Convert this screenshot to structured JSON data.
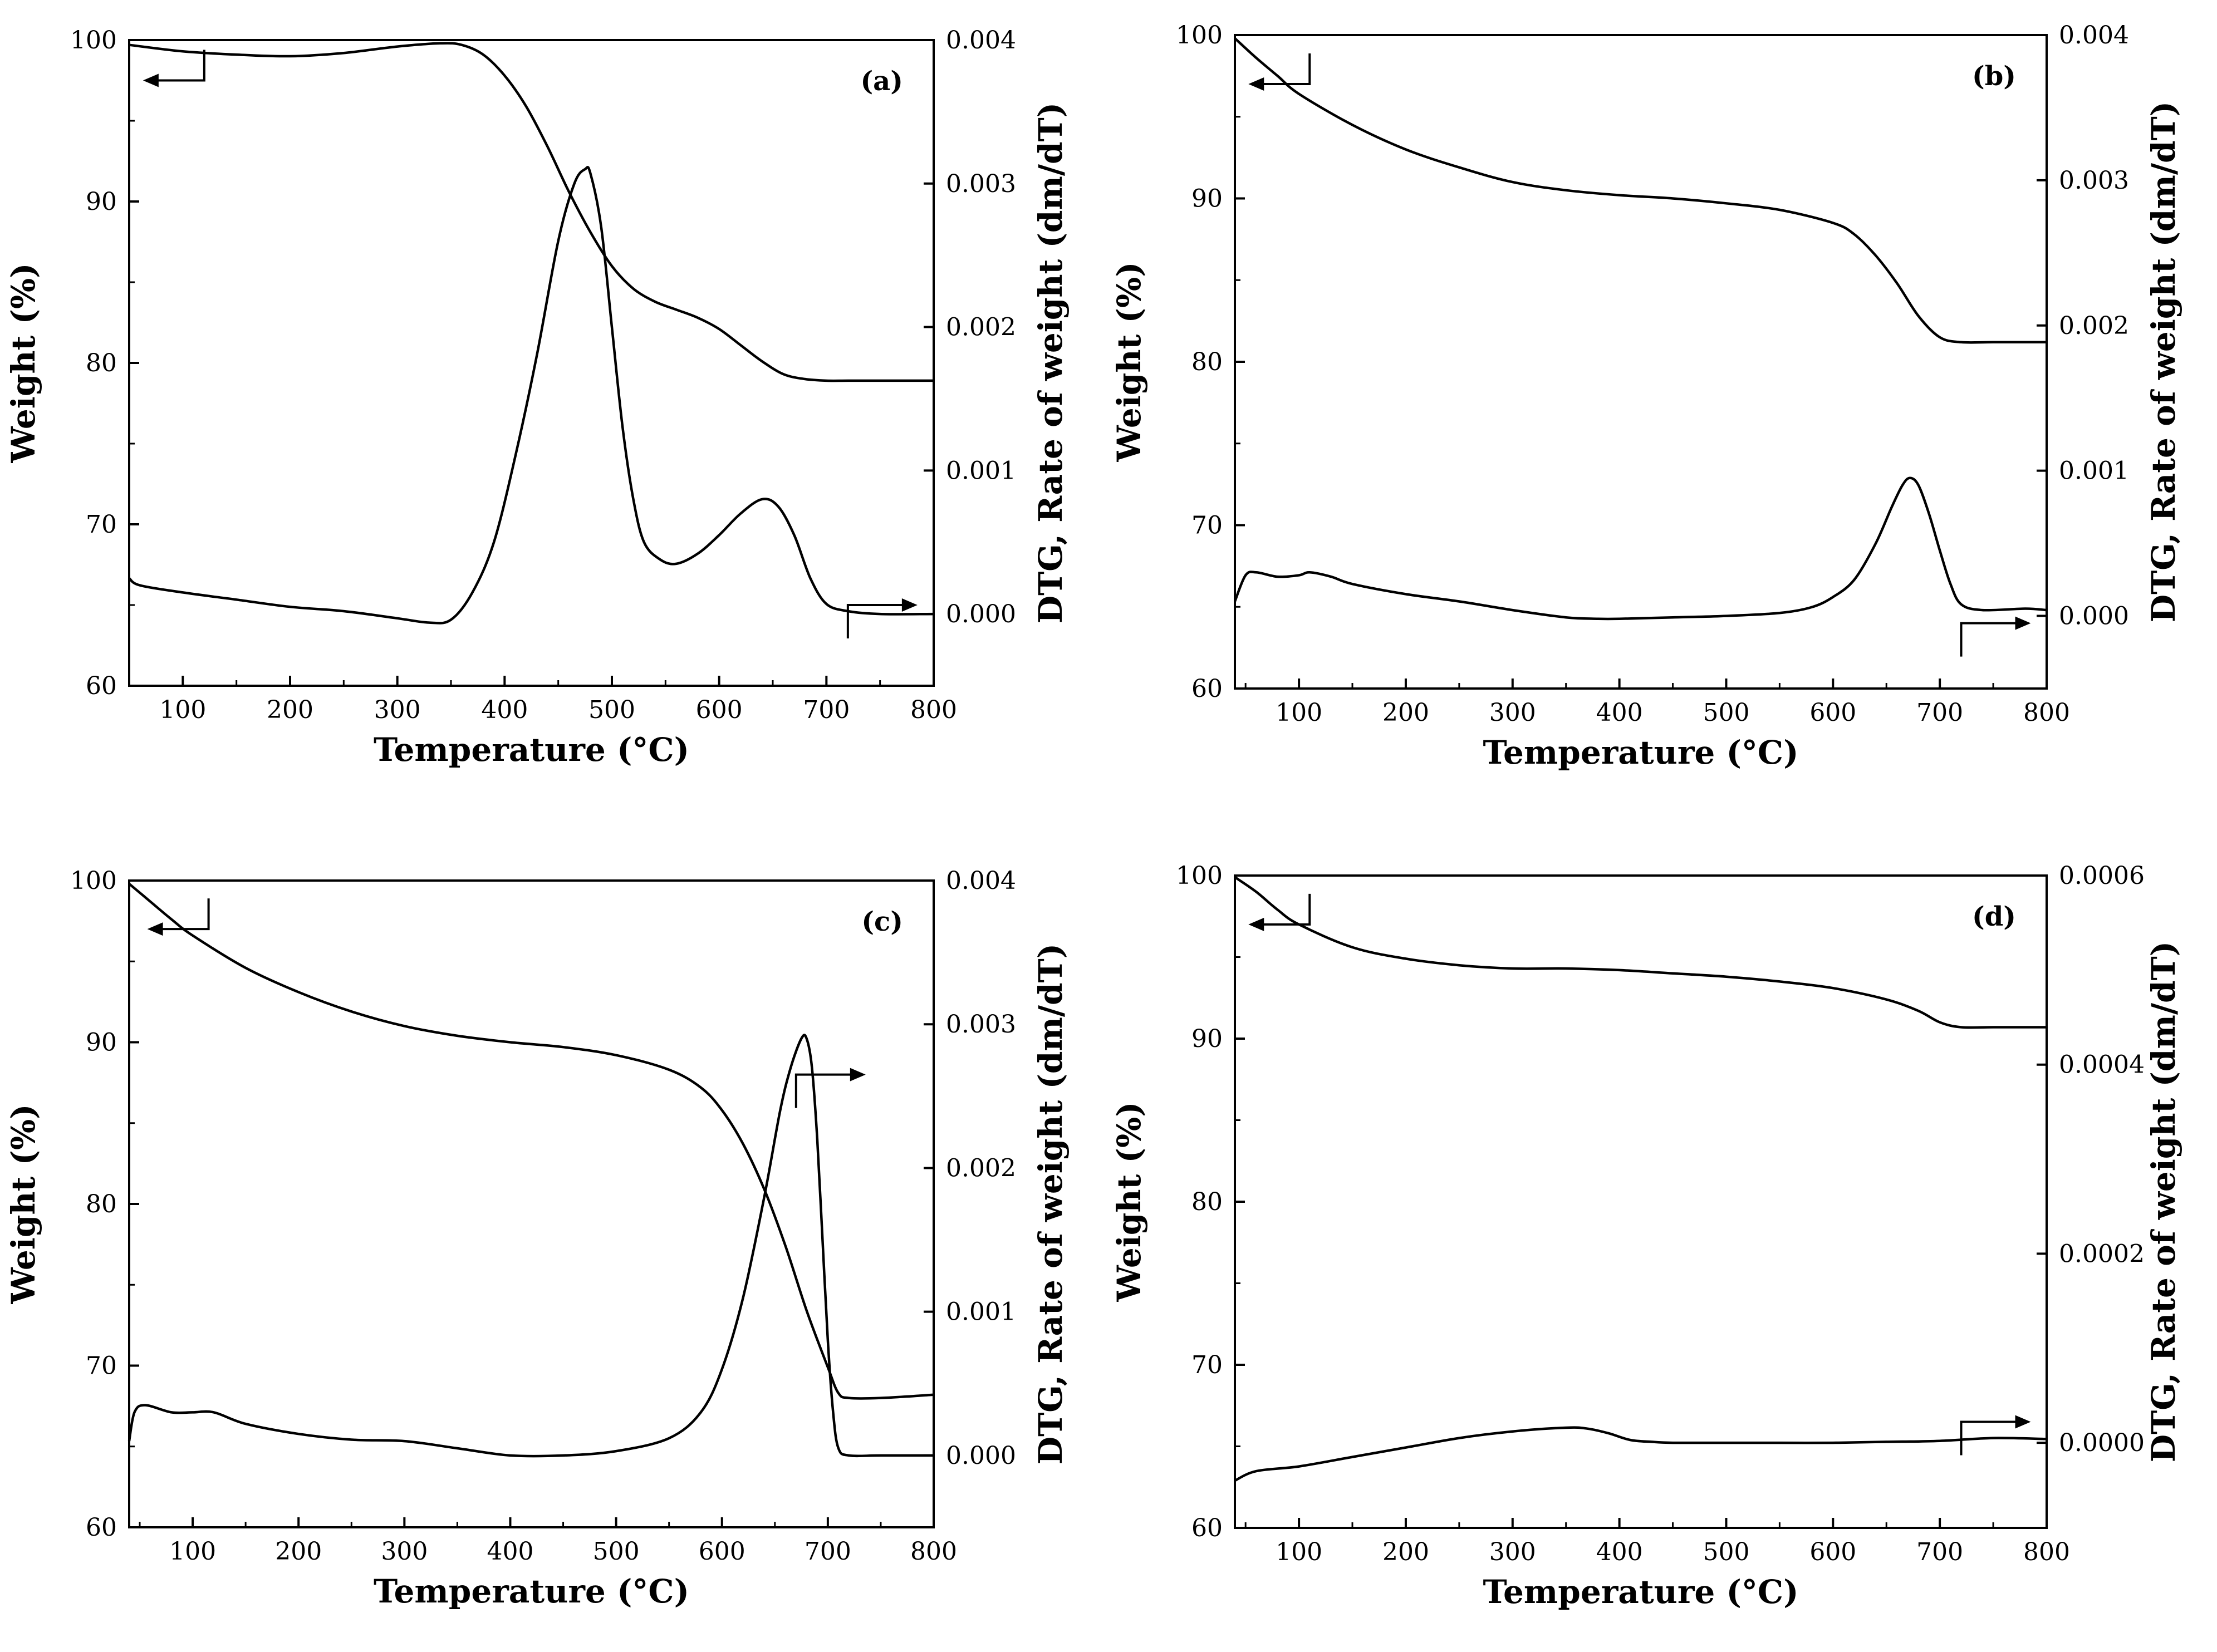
{
  "chart_data": [
    {
      "type": "line",
      "panel_label": "(a)",
      "xlabel": "Temperature (°C)",
      "ylabel": "Weight (%)",
      "ylabel_right": "DTG, Rate of weight (dm/dT)",
      "xlim": [
        50,
        800
      ],
      "ylim": [
        60,
        100
      ],
      "y2lim": [
        -0.0005,
        0.004
      ],
      "xticks": [
        "100",
        "200",
        "300",
        "400",
        "500",
        "600",
        "700",
        "800"
      ],
      "yticks": [
        "60",
        "70",
        "80",
        "90",
        "100"
      ],
      "y2ticks": [
        "0.000",
        "0.001",
        "0.002",
        "0.003",
        "0.004"
      ],
      "weight_series": {
        "name": "Weight",
        "x": [
          50,
          100,
          150,
          200,
          250,
          300,
          340,
          360,
          380,
          400,
          420,
          440,
          460,
          480,
          500,
          520,
          540,
          560,
          580,
          600,
          620,
          640,
          660,
          680,
          700,
          720,
          750,
          800
        ],
        "y": [
          99.7,
          99.3,
          99.1,
          99.0,
          99.2,
          99.6,
          99.8,
          99.7,
          99.1,
          97.8,
          95.9,
          93.4,
          90.6,
          88.1,
          86.0,
          84.6,
          83.8,
          83.3,
          82.8,
          82.1,
          81.1,
          80.1,
          79.3,
          79.0,
          78.9,
          78.9,
          78.9,
          78.9
        ]
      },
      "dtg_series": {
        "name": "DTG",
        "x": [
          50,
          60,
          100,
          150,
          200,
          250,
          300,
          330,
          350,
          370,
          390,
          410,
          430,
          450,
          465,
          475,
          480,
          490,
          500,
          510,
          520,
          530,
          545,
          560,
          580,
          600,
          620,
          640,
          655,
          670,
          685,
          700,
          720,
          750,
          800
        ],
        "y": [
          0.00025,
          0.0002,
          0.00015,
          0.0001,
          5e-05,
          2e-05,
          -3e-05,
          -6e-05,
          -4e-05,
          0.00015,
          0.0005,
          0.0011,
          0.0018,
          0.0026,
          0.003,
          0.0031,
          0.00307,
          0.0027,
          0.002,
          0.0013,
          0.0008,
          0.0005,
          0.00038,
          0.00035,
          0.00042,
          0.00055,
          0.0007,
          0.0008,
          0.00075,
          0.00055,
          0.00025,
          7e-05,
          2e-05,
          0.0,
          0.0
        ]
      },
      "annotations": [
        "arrow pointing left to weight axis",
        "arrow pointing right to DTG axis"
      ]
    },
    {
      "type": "line",
      "panel_label": "(b)",
      "xlabel": "Temperature (°C)",
      "ylabel": "Weight (%)",
      "ylabel_right": "DTG, Rate of weight (dm/dT)",
      "xlim": [
        40,
        800
      ],
      "ylim": [
        60,
        100
      ],
      "y2lim": [
        -0.0005,
        0.004
      ],
      "xticks": [
        "100",
        "200",
        "300",
        "400",
        "500",
        "600",
        "700",
        "800"
      ],
      "yticks": [
        "60",
        "70",
        "80",
        "90",
        "100"
      ],
      "y2ticks": [
        "0.000",
        "0.001",
        "0.002",
        "0.003",
        "0.004"
      ],
      "weight_series": {
        "name": "Weight",
        "x": [
          40,
          60,
          80,
          100,
          150,
          200,
          250,
          300,
          350,
          400,
          450,
          500,
          550,
          600,
          620,
          640,
          660,
          680,
          700,
          720,
          750,
          800
        ],
        "y": [
          99.8,
          98.6,
          97.5,
          96.4,
          94.5,
          93.0,
          91.9,
          91.0,
          90.5,
          90.2,
          90.0,
          89.7,
          89.3,
          88.5,
          87.8,
          86.5,
          84.8,
          82.8,
          81.5,
          81.2,
          81.2,
          81.2
        ]
      },
      "dtg_series": {
        "name": "DTG",
        "x": [
          40,
          50,
          60,
          80,
          100,
          110,
          130,
          150,
          200,
          250,
          300,
          350,
          380,
          400,
          450,
          500,
          550,
          580,
          600,
          620,
          640,
          655,
          665,
          672,
          680,
          690,
          700,
          710,
          720,
          740,
          780,
          800
        ],
        "y": [
          0.0001,
          0.00028,
          0.0003,
          0.00027,
          0.00028,
          0.0003,
          0.00027,
          0.00022,
          0.00015,
          0.0001,
          4e-05,
          -1e-05,
          -2e-05,
          -2e-05,
          -1e-05,
          0.0,
          2e-05,
          6e-05,
          0.00013,
          0.00025,
          0.0005,
          0.00075,
          0.0009,
          0.00095,
          0.0009,
          0.0007,
          0.00045,
          0.00022,
          8e-05,
          4e-05,
          5e-05,
          4e-05
        ]
      },
      "annotations": [
        "arrow pointing left to weight axis",
        "arrow pointing right to DTG axis"
      ]
    },
    {
      "type": "line",
      "panel_label": "(c)",
      "xlabel": "Temperature (°C)",
      "ylabel": "Weight (%)",
      "ylabel_right": "DTG, Rate of weight (dm/dT)",
      "xlim": [
        40,
        800
      ],
      "ylim": [
        60,
        100
      ],
      "y2lim": [
        -0.0005,
        0.004
      ],
      "xticks": [
        "100",
        "200",
        "300",
        "400",
        "500",
        "600",
        "700",
        "800"
      ],
      "yticks": [
        "60",
        "70",
        "80",
        "90",
        "100"
      ],
      "y2ticks": [
        "0.000",
        "0.001",
        "0.002",
        "0.003",
        "0.004"
      ],
      "weight_series": {
        "name": "Weight",
        "x": [
          40,
          60,
          80,
          100,
          150,
          200,
          250,
          300,
          350,
          400,
          450,
          500,
          550,
          580,
          600,
          620,
          640,
          660,
          680,
          700,
          710,
          720,
          750,
          800
        ],
        "y": [
          99.8,
          98.7,
          97.6,
          96.6,
          94.6,
          93.1,
          91.9,
          91.0,
          90.4,
          90.0,
          89.7,
          89.2,
          88.3,
          87.2,
          85.8,
          83.7,
          80.9,
          77.4,
          73.4,
          69.9,
          68.3,
          68.0,
          68.0,
          68.2
        ]
      },
      "dtg_series": {
        "name": "DTG",
        "x": [
          40,
          45,
          55,
          80,
          100,
          120,
          150,
          200,
          250,
          300,
          350,
          400,
          450,
          500,
          550,
          580,
          600,
          620,
          640,
          655,
          665,
          675,
          680,
          685,
          690,
          695,
          700,
          705,
          710,
          720,
          750,
          800
        ],
        "y": [
          0.0001,
          0.0003,
          0.00035,
          0.0003,
          0.0003,
          0.0003,
          0.00022,
          0.00015,
          0.00011,
          0.0001,
          5e-05,
          0.0,
          0.0,
          3e-05,
          0.00012,
          0.0003,
          0.0006,
          0.0011,
          0.0018,
          0.0024,
          0.0027,
          0.0029,
          0.0029,
          0.0027,
          0.0022,
          0.0015,
          0.0008,
          0.0003,
          5e-05,
          0.0,
          0.0,
          0.0
        ]
      },
      "annotations": [
        "arrow pointing left to weight axis",
        "arrow pointing right to DTG axis"
      ]
    },
    {
      "type": "line",
      "panel_label": "(d)",
      "xlabel": "Temperature (°C)",
      "ylabel": "Weight (%)",
      "ylabel_right": "DTG, Rate of weight (dm/dT)",
      "xlim": [
        40,
        800
      ],
      "ylim": [
        60,
        100
      ],
      "y2lim": [
        -9e-05,
        0.0006
      ],
      "xticks": [
        "100",
        "200",
        "300",
        "400",
        "500",
        "600",
        "700",
        "800"
      ],
      "yticks": [
        "60",
        "70",
        "80",
        "90",
        "100"
      ],
      "y2ticks": [
        "0.0000",
        "0.0002",
        "0.0004",
        "0.0006"
      ],
      "weight_series": {
        "name": "Weight",
        "x": [
          40,
          60,
          80,
          100,
          150,
          200,
          250,
          300,
          350,
          400,
          450,
          500,
          550,
          600,
          650,
          680,
          700,
          720,
          750,
          800
        ],
        "y": [
          99.9,
          99.0,
          97.9,
          97.0,
          95.6,
          94.9,
          94.5,
          94.3,
          94.3,
          94.2,
          94.0,
          93.8,
          93.5,
          93.1,
          92.4,
          91.7,
          91.0,
          90.7,
          90.7,
          90.7
        ]
      },
      "dtg_series": {
        "name": "DTG",
        "x": [
          40,
          60,
          100,
          150,
          200,
          250,
          300,
          350,
          370,
          390,
          410,
          430,
          450,
          500,
          550,
          600,
          650,
          700,
          750,
          800
        ],
        "y": [
          -4e-05,
          -3e-05,
          -2.5e-05,
          -1.5e-05,
          -5e-06,
          5e-06,
          1.2e-05,
          1.6e-05,
          1.5e-05,
          1e-05,
          3e-06,
          1e-06,
          0.0,
          0.0,
          0.0,
          0.0,
          1e-06,
          2e-06,
          5e-06,
          4e-06
        ]
      },
      "annotations": [
        "arrow pointing left to weight axis",
        "arrow pointing right to DTG axis"
      ]
    }
  ]
}
